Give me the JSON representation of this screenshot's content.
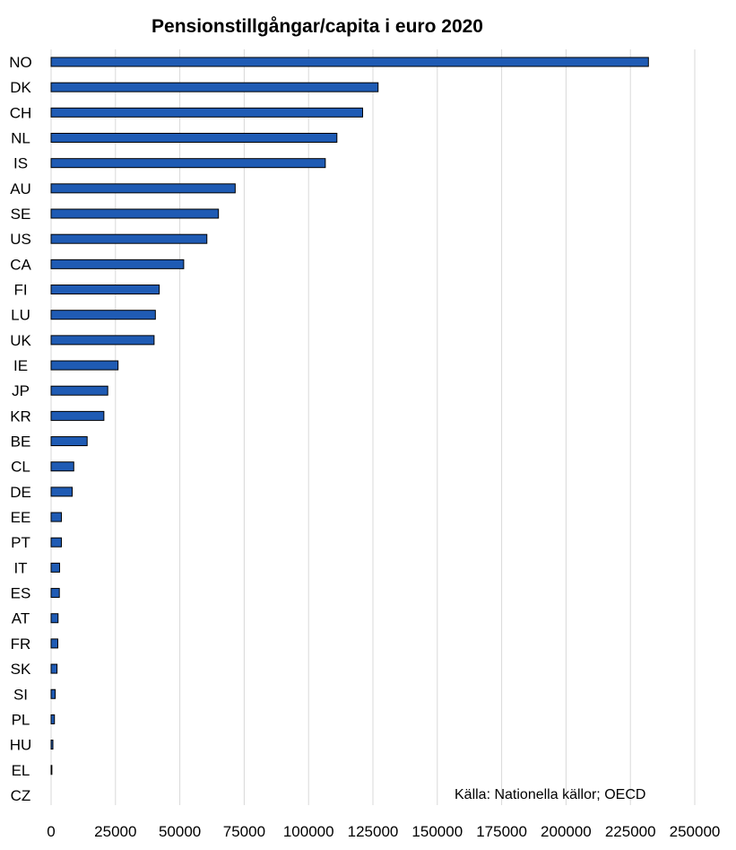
{
  "chart_data": {
    "type": "bar",
    "orientation": "horizontal",
    "title": "Pensionstillgångar/capita i euro 2020",
    "xlabel": "",
    "ylabel": "",
    "xlim": [
      0,
      250000
    ],
    "xticks": [
      "0",
      "25000",
      "50000",
      "75000",
      "100000",
      "125000",
      "150000",
      "175000",
      "200000",
      "225000",
      "250000"
    ],
    "grid": "vertical",
    "categories": [
      "NO",
      "DK",
      "CH",
      "NL",
      "IS",
      "AU",
      "SE",
      "US",
      "CA",
      "FI",
      "LU",
      "UK",
      "IE",
      "JP",
      "KR",
      "BE",
      "CL",
      "DE",
      "EE",
      "PT",
      "IT",
      "ES",
      "AT",
      "FR",
      "SK",
      "SI",
      "PL",
      "HU",
      "EL",
      "CZ"
    ],
    "values": [
      232000,
      127000,
      121000,
      111000,
      106500,
      71500,
      65000,
      60500,
      51500,
      42000,
      40500,
      40000,
      26000,
      22000,
      20500,
      14000,
      8800,
      8200,
      4000,
      4000,
      3300,
      3200,
      2700,
      2600,
      2300,
      1600,
      1300,
      700,
      300,
      0
    ],
    "colors": {
      "bar_fill": "#1F5BB4",
      "bar_stroke": "#000000",
      "grid": "#D9D9D9"
    },
    "annotation": "Källa: Nationella källor; OECD"
  }
}
